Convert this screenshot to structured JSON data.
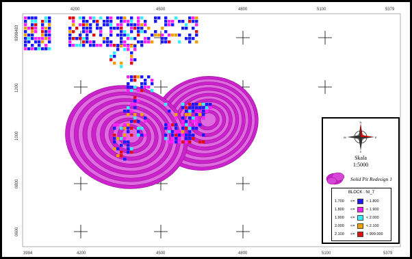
{
  "map": {
    "x_ticks_top": [
      "4200",
      "4500",
      "4800",
      "5100",
      "5379"
    ],
    "x_ticks_bottom": [
      "3994",
      "4200",
      "4500",
      "4800",
      "5100",
      "5379"
    ],
    "y_ticks_left": [
      "9998483",
      "1200",
      "1000",
      "0800",
      "0600"
    ],
    "colors": {
      "pit": "#cc22cc",
      "pit_light": "#e06ae0",
      "pit_line": "#8a0f8a",
      "grid_cross": "#000000"
    }
  },
  "legend": {
    "compass_icon": "compass-rose-icon",
    "scale_title": "Skala",
    "scale_value": "1:5000",
    "pit_label": "Solid Pit Redesign 1",
    "block_title": "BLOCK : NI_7",
    "block_rows": [
      {
        "lo": "1.700",
        "op": "<=",
        "hi": "< 1.800",
        "color": "#1a1aff"
      },
      {
        "lo": "1.800",
        "op": "<=",
        "hi": "< 1.900",
        "color": "#ff22ff"
      },
      {
        "lo": "1.900",
        "op": "<=",
        "hi": "< 2.000",
        "color": "#33eeff"
      },
      {
        "lo": "2.000",
        "op": "<=",
        "hi": "< 2.100",
        "color": "#f0a000"
      },
      {
        "lo": "2.100",
        "op": "<=",
        "hi": "< 999.000",
        "color": "#e01010"
      }
    ]
  }
}
